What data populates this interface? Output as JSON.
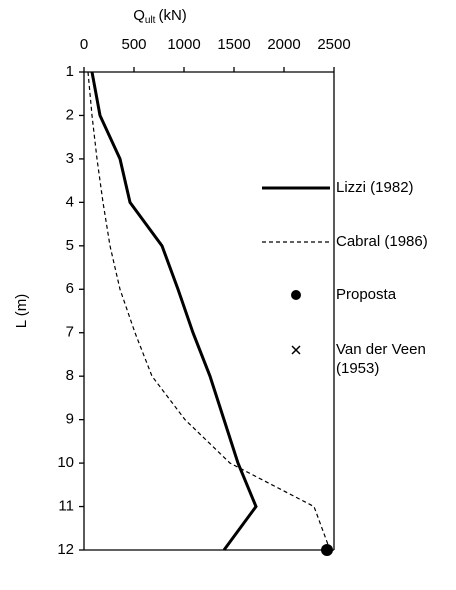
{
  "chart_data": {
    "type": "line",
    "x_label": {
      "main": "Q",
      "sub": "ult",
      "unit": "(kN)"
    },
    "y_label": "L (m)",
    "xlim": [
      0,
      2500
    ],
    "xticks": [
      0,
      500,
      1000,
      1500,
      2000,
      2500
    ],
    "x_axis_position": "top",
    "ylim": [
      1,
      12
    ],
    "yticks": [
      1,
      2,
      3,
      4,
      5,
      6,
      7,
      8,
      9,
      10,
      11,
      12
    ],
    "y_inverted": true,
    "legend": "right",
    "series": [
      {
        "name": "Lizzi (1982)",
        "color": "#000000",
        "style": "solid",
        "x": [
          80,
          160,
          360,
          460,
          780,
          940,
          1090,
          1260,
          1400,
          1540,
          1720,
          1400
        ],
        "y": [
          1,
          2,
          3,
          4,
          5,
          6,
          7,
          8,
          9,
          10,
          11,
          12
        ]
      },
      {
        "name": "Cabral (1986)",
        "color": "#000000",
        "style": "dashed",
        "x": [
          40,
          80,
          130,
          190,
          260,
          360,
          510,
          680,
          1010,
          1460,
          2300,
          2460
        ],
        "y": [
          1,
          2,
          3,
          4,
          5,
          6,
          7,
          8,
          9,
          10,
          11,
          12
        ]
      },
      {
        "name": "Proposta",
        "color": "#000000",
        "style": "dot",
        "x": [
          2430
        ],
        "y": [
          12
        ]
      },
      {
        "name": "Van der Veen (1953)",
        "color": "#000000",
        "style": "cross",
        "x": [
          2430
        ],
        "y": [
          12
        ]
      }
    ]
  }
}
